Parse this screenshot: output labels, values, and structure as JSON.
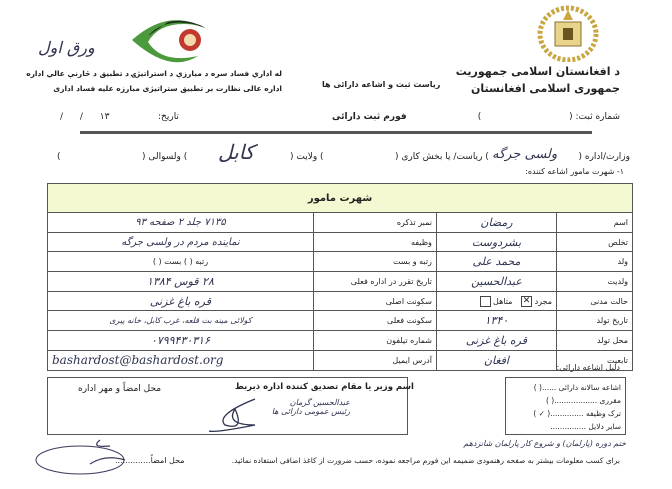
{
  "header": {
    "country_pashto": "د افغانستان اسلامی جمهوریت",
    "country_dari": "جمهوری اسلامی افغانستان",
    "agency_pashto": "له اداري فساد سره د مبارزې د استراتيژۍ د تطبيق د څارنې عالي اداره",
    "agency_dari": "اداره عالی نظارت بر تطبیق ستراتیژی مبارزه علیه فساد اداری",
    "department": "ریاست ثبت و اشاعه دارائی ها",
    "page_note": "ورق اول",
    "registration_label": "شماره ثبت: (",
    "registration_close": ")",
    "form_title": "فورم ثبت دارائی",
    "date_label": "تاریخ:",
    "date_value": "۱۳   /      /"
  },
  "office_row": {
    "ministry_label": "وزارت/اداره (",
    "ministry_value": "ولسی جرگه",
    "directorate_label": ") ریاست/ یا بخش کاری (",
    "province_label": ") ولایت (",
    "province_value": "کابل",
    "district_label": ") ولسوالی (",
    "close": ")",
    "section_label": "۱- شهرت مامور اشاعه کننده:"
  },
  "table": {
    "title": "شهرت مامور",
    "rows": [
      {
        "label": "اسم",
        "value": "رمضان",
        "label2": "نمبر تذکره",
        "value2": "۷۱۳۵   جلد ۲  صفحه  ۹۳"
      },
      {
        "label": "تخلص",
        "value": "بشردوست",
        "label2": "وظیفه",
        "value2": "نماینده مردم در ولسی جرگه"
      },
      {
        "label": "ولد",
        "value": "محمد علی",
        "label2": "رتبه و بست",
        "value2": "رتبه (     )   بست (     )"
      },
      {
        "label": "ولدیت",
        "value": "عبدالحسین",
        "label2": "تاریخ تقرر در اداره فعلی",
        "value2": "۲۸ قوس ۱۳۸۴"
      },
      {
        "label": "حالت مدنی",
        "value": "",
        "label2": "سکونت اصلی",
        "value2": "قره باغ غزنی"
      },
      {
        "label": "تاریخ تولد",
        "value": "۱۳۴۰",
        "label2": "سکونت فعلی",
        "value2": "کولائی مینه بت قلعه، غرب کابل، خانه پیری"
      },
      {
        "label": "محل تولد",
        "value": "قره باغ غزنی",
        "label2": "شماره تیلفون",
        "value2": "۰۷۹۹۴۳۰۳۱۶"
      },
      {
        "label": "تابعیت",
        "value": "افغان",
        "label2": "آدرس ایمیل",
        "value2": "bashardost@bashardost.org"
      }
    ],
    "marital": {
      "single_label": "مجرد",
      "single_checked": true,
      "married_label": "متاهل",
      "married_checked": false
    }
  },
  "reason": {
    "title": "دلیل اشاعه دارائی:",
    "items": [
      {
        "label": "اشاعه سالانه دارائی ......",
        "mark": "(     )"
      },
      {
        "label": "مقرری ..................",
        "mark": "(     )"
      },
      {
        "label": "ترک وظیفه ..............",
        "mark": "( ✓ )"
      },
      {
        "label": "سایر دلایل ...............",
        "mark": ""
      }
    ],
    "other_handwritten": "ختم دوره (پارلمان) و شروع کار پارلمان شانزدهم"
  },
  "approval": {
    "signature_stamp_label": "محل امضاً و مهر اداره",
    "minister_label": "اسم وزیر یا مقام تصدیق کننده اداره ذیربط",
    "minister_handwritten": "عبدالحسین گرمان رئیس عمومی دارائی ها"
  },
  "footer": {
    "signature_label": "محل امضاً..............",
    "note": "برای کسب معلومات بیشتر به صفحه رهنمودی ضمیمه این فورم مراجعه نموده، حسب ضرورت از کاغذ اضافی استفاده نمائید."
  },
  "colors": {
    "table_header": "#f5f9d2",
    "logo_green": "#4b9a3b",
    "handwriting": "#2e3350"
  }
}
